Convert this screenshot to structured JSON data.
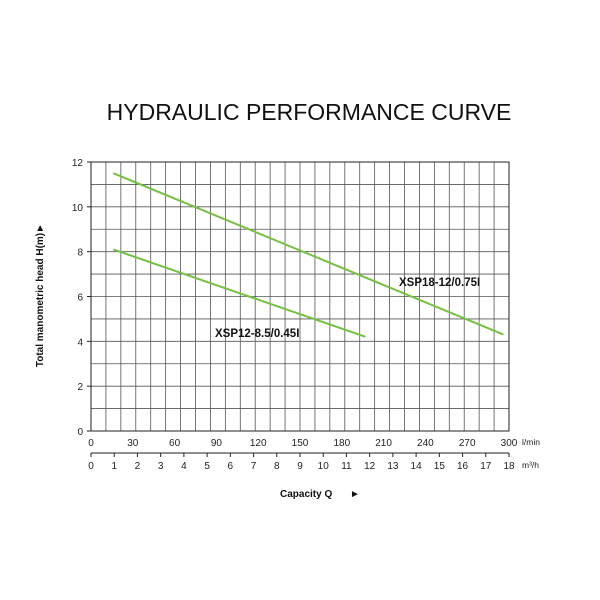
{
  "chart_data": {
    "type": "line",
    "title": "HYDRAULIC PERFORMANCE CURVE",
    "ylabel": "Total manometric head H(m)",
    "ylabel_arrow": "►",
    "xlabel": "Capacity Q",
    "xlabel_arrow": "►",
    "ylim": [
      0,
      12
    ],
    "yticks": [
      "0",
      "2",
      "4",
      "6",
      "8",
      "10",
      "12"
    ],
    "xlim_lmin": [
      0,
      300
    ],
    "x_primary": {
      "unit": "l/min",
      "ticks": [
        "0",
        "30",
        "60",
        "90",
        "120",
        "150",
        "180",
        "210",
        "240",
        "270",
        "300"
      ]
    },
    "x_secondary": {
      "unit": "m³/h",
      "ticks": [
        "0",
        "1",
        "2",
        "3",
        "4",
        "5",
        "6",
        "7",
        "8",
        "9",
        "10",
        "11",
        "12",
        "13",
        "14",
        "15",
        "16",
        "17",
        "18"
      ]
    },
    "grid": true,
    "series": [
      {
        "name": "XSP18-12/0.75",
        "label": "XSP18-12/0.75I",
        "points": [
          [
            16,
            11.5
          ],
          [
            296,
            4.3
          ]
        ]
      },
      {
        "name": "XSP12-8.5/0.45",
        "label": "XSP12-8.5/0.45I",
        "points": [
          [
            16,
            8.1
          ],
          [
            197,
            4.2
          ]
        ]
      }
    ],
    "line_color": "#77c043"
  }
}
